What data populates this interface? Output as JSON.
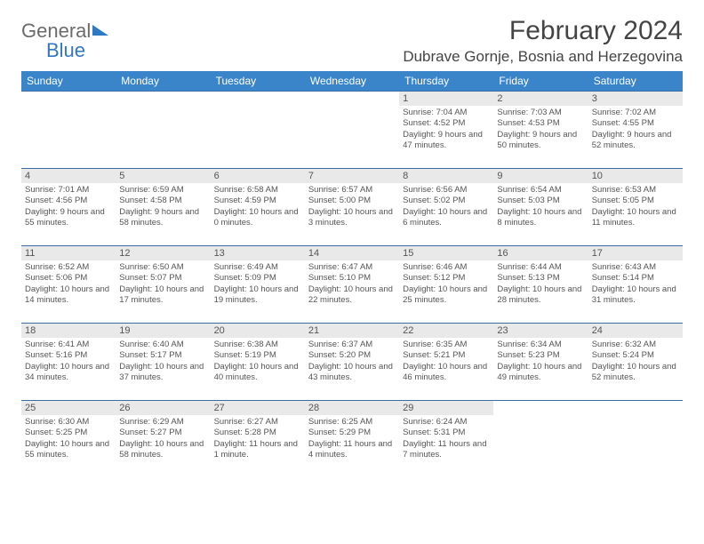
{
  "logo": {
    "word1": "General",
    "word2": "Blue"
  },
  "header": {
    "month": "February 2024",
    "location": "Dubrave Gornje, Bosnia and Herzegovina"
  },
  "colors": {
    "header_bg": "#3a84c9",
    "header_text": "#ffffff",
    "row_sep": "#3a6fa5",
    "daynum_bg": "#e9e9e9",
    "text": "#555555",
    "logo_blue": "#2f78c2",
    "logo_gray": "#6b6b6b"
  },
  "weekdays": [
    "Sunday",
    "Monday",
    "Tuesday",
    "Wednesday",
    "Thursday",
    "Friday",
    "Saturday"
  ],
  "weeks": [
    [
      null,
      null,
      null,
      null,
      {
        "day": "1",
        "sunrise": "Sunrise: 7:04 AM",
        "sunset": "Sunset: 4:52 PM",
        "daylight": "Daylight: 9 hours and 47 minutes."
      },
      {
        "day": "2",
        "sunrise": "Sunrise: 7:03 AM",
        "sunset": "Sunset: 4:53 PM",
        "daylight": "Daylight: 9 hours and 50 minutes."
      },
      {
        "day": "3",
        "sunrise": "Sunrise: 7:02 AM",
        "sunset": "Sunset: 4:55 PM",
        "daylight": "Daylight: 9 hours and 52 minutes."
      }
    ],
    [
      {
        "day": "4",
        "sunrise": "Sunrise: 7:01 AM",
        "sunset": "Sunset: 4:56 PM",
        "daylight": "Daylight: 9 hours and 55 minutes."
      },
      {
        "day": "5",
        "sunrise": "Sunrise: 6:59 AM",
        "sunset": "Sunset: 4:58 PM",
        "daylight": "Daylight: 9 hours and 58 minutes."
      },
      {
        "day": "6",
        "sunrise": "Sunrise: 6:58 AM",
        "sunset": "Sunset: 4:59 PM",
        "daylight": "Daylight: 10 hours and 0 minutes."
      },
      {
        "day": "7",
        "sunrise": "Sunrise: 6:57 AM",
        "sunset": "Sunset: 5:00 PM",
        "daylight": "Daylight: 10 hours and 3 minutes."
      },
      {
        "day": "8",
        "sunrise": "Sunrise: 6:56 AM",
        "sunset": "Sunset: 5:02 PM",
        "daylight": "Daylight: 10 hours and 6 minutes."
      },
      {
        "day": "9",
        "sunrise": "Sunrise: 6:54 AM",
        "sunset": "Sunset: 5:03 PM",
        "daylight": "Daylight: 10 hours and 8 minutes."
      },
      {
        "day": "10",
        "sunrise": "Sunrise: 6:53 AM",
        "sunset": "Sunset: 5:05 PM",
        "daylight": "Daylight: 10 hours and 11 minutes."
      }
    ],
    [
      {
        "day": "11",
        "sunrise": "Sunrise: 6:52 AM",
        "sunset": "Sunset: 5:06 PM",
        "daylight": "Daylight: 10 hours and 14 minutes."
      },
      {
        "day": "12",
        "sunrise": "Sunrise: 6:50 AM",
        "sunset": "Sunset: 5:07 PM",
        "daylight": "Daylight: 10 hours and 17 minutes."
      },
      {
        "day": "13",
        "sunrise": "Sunrise: 6:49 AM",
        "sunset": "Sunset: 5:09 PM",
        "daylight": "Daylight: 10 hours and 19 minutes."
      },
      {
        "day": "14",
        "sunrise": "Sunrise: 6:47 AM",
        "sunset": "Sunset: 5:10 PM",
        "daylight": "Daylight: 10 hours and 22 minutes."
      },
      {
        "day": "15",
        "sunrise": "Sunrise: 6:46 AM",
        "sunset": "Sunset: 5:12 PM",
        "daylight": "Daylight: 10 hours and 25 minutes."
      },
      {
        "day": "16",
        "sunrise": "Sunrise: 6:44 AM",
        "sunset": "Sunset: 5:13 PM",
        "daylight": "Daylight: 10 hours and 28 minutes."
      },
      {
        "day": "17",
        "sunrise": "Sunrise: 6:43 AM",
        "sunset": "Sunset: 5:14 PM",
        "daylight": "Daylight: 10 hours and 31 minutes."
      }
    ],
    [
      {
        "day": "18",
        "sunrise": "Sunrise: 6:41 AM",
        "sunset": "Sunset: 5:16 PM",
        "daylight": "Daylight: 10 hours and 34 minutes."
      },
      {
        "day": "19",
        "sunrise": "Sunrise: 6:40 AM",
        "sunset": "Sunset: 5:17 PM",
        "daylight": "Daylight: 10 hours and 37 minutes."
      },
      {
        "day": "20",
        "sunrise": "Sunrise: 6:38 AM",
        "sunset": "Sunset: 5:19 PM",
        "daylight": "Daylight: 10 hours and 40 minutes."
      },
      {
        "day": "21",
        "sunrise": "Sunrise: 6:37 AM",
        "sunset": "Sunset: 5:20 PM",
        "daylight": "Daylight: 10 hours and 43 minutes."
      },
      {
        "day": "22",
        "sunrise": "Sunrise: 6:35 AM",
        "sunset": "Sunset: 5:21 PM",
        "daylight": "Daylight: 10 hours and 46 minutes."
      },
      {
        "day": "23",
        "sunrise": "Sunrise: 6:34 AM",
        "sunset": "Sunset: 5:23 PM",
        "daylight": "Daylight: 10 hours and 49 minutes."
      },
      {
        "day": "24",
        "sunrise": "Sunrise: 6:32 AM",
        "sunset": "Sunset: 5:24 PM",
        "daylight": "Daylight: 10 hours and 52 minutes."
      }
    ],
    [
      {
        "day": "25",
        "sunrise": "Sunrise: 6:30 AM",
        "sunset": "Sunset: 5:25 PM",
        "daylight": "Daylight: 10 hours and 55 minutes."
      },
      {
        "day": "26",
        "sunrise": "Sunrise: 6:29 AM",
        "sunset": "Sunset: 5:27 PM",
        "daylight": "Daylight: 10 hours and 58 minutes."
      },
      {
        "day": "27",
        "sunrise": "Sunrise: 6:27 AM",
        "sunset": "Sunset: 5:28 PM",
        "daylight": "Daylight: 11 hours and 1 minute."
      },
      {
        "day": "28",
        "sunrise": "Sunrise: 6:25 AM",
        "sunset": "Sunset: 5:29 PM",
        "daylight": "Daylight: 11 hours and 4 minutes."
      },
      {
        "day": "29",
        "sunrise": "Sunrise: 6:24 AM",
        "sunset": "Sunset: 5:31 PM",
        "daylight": "Daylight: 11 hours and 7 minutes."
      },
      null,
      null
    ]
  ]
}
